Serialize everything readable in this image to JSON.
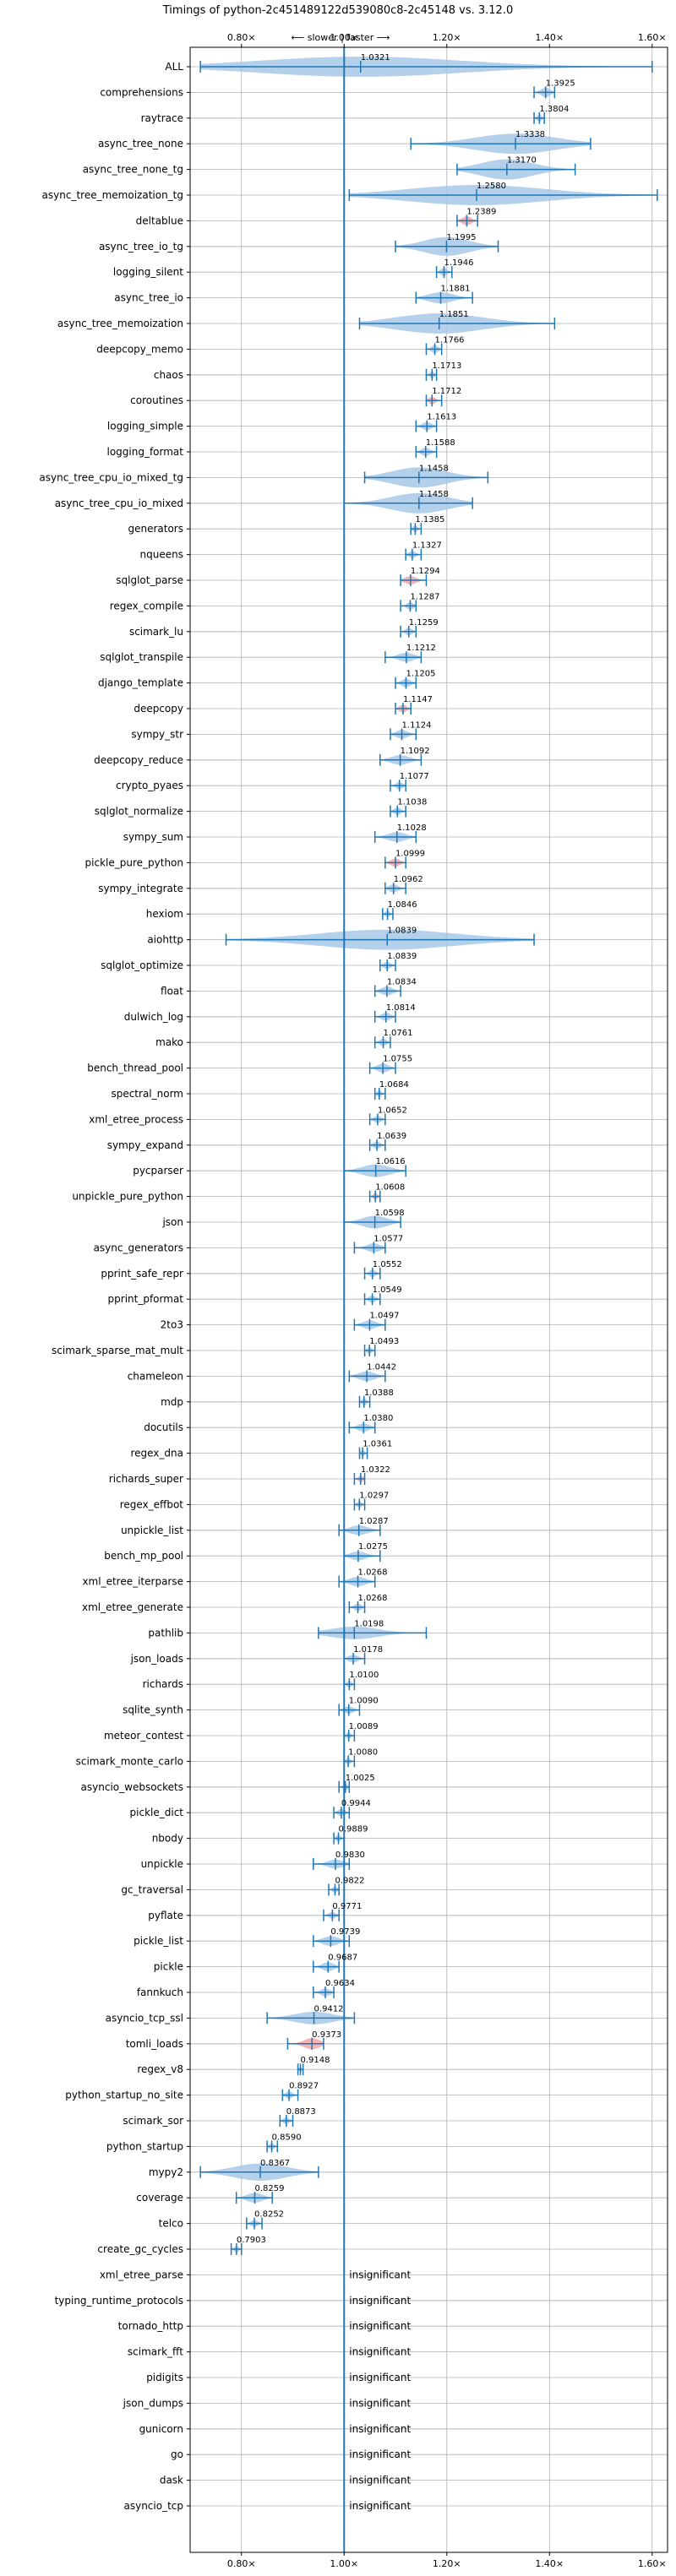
{
  "chart_data": {
    "type": "violin",
    "title": "Timings of python-2c451489122d539080c8-2c45148 vs. 3.12.0",
    "direction_label": "⟵ slower | faster ⟶",
    "xlim": [
      0.7,
      1.63
    ],
    "x_ticks": [
      0.8,
      1.0,
      1.2,
      1.4,
      1.6
    ],
    "x_tick_labels": [
      "0.80×",
      "1.00×",
      "1.20×",
      "1.40×",
      "1.60×"
    ],
    "reference_line": 1.0,
    "grid": true,
    "insignificant_label": "insignificant",
    "colors": {
      "violin": "#a8c8e8",
      "violin_slow": "#f4a6a6",
      "whisker": "#1f77b4",
      "grid": "#b0b0b0"
    },
    "benchmarks": [
      {
        "name": "ALL",
        "value": 1.0321,
        "min": 0.72,
        "max": 1.6,
        "spread": 0.2
      },
      {
        "name": "comprehensions",
        "value": 1.3925,
        "min": 1.37,
        "max": 1.41,
        "spread": 0.03
      },
      {
        "name": "raytrace",
        "value": 1.3804,
        "min": 1.37,
        "max": 1.39,
        "spread": 0.015
      },
      {
        "name": "async_tree_none",
        "value": 1.3338,
        "min": 1.13,
        "max": 1.48,
        "spread": 0.15
      },
      {
        "name": "async_tree_none_tg",
        "value": 1.317,
        "min": 1.22,
        "max": 1.45,
        "spread": 0.1
      },
      {
        "name": "async_tree_memoization_tg",
        "value": 1.258,
        "min": 1.01,
        "max": 1.61,
        "spread": 0.26
      },
      {
        "name": "deltablue",
        "value": 1.2389,
        "min": 1.22,
        "max": 1.26,
        "spread": 0.025,
        "slow": true
      },
      {
        "name": "async_tree_io_tg",
        "value": 1.1995,
        "min": 1.1,
        "max": 1.3,
        "spread": 0.09
      },
      {
        "name": "logging_silent",
        "value": 1.1946,
        "min": 1.18,
        "max": 1.21,
        "spread": 0.02
      },
      {
        "name": "async_tree_io",
        "value": 1.1881,
        "min": 1.14,
        "max": 1.25,
        "spread": 0.04
      },
      {
        "name": "async_tree_memoization",
        "value": 1.1851,
        "min": 1.03,
        "max": 1.41,
        "spread": 0.14
      },
      {
        "name": "deepcopy_memo",
        "value": 1.1766,
        "min": 1.16,
        "max": 1.19,
        "spread": 0.02
      },
      {
        "name": "chaos",
        "value": 1.1713,
        "min": 1.16,
        "max": 1.18,
        "spread": 0.015
      },
      {
        "name": "coroutines",
        "value": 1.1712,
        "min": 1.16,
        "max": 1.19,
        "spread": 0.015,
        "slow": true
      },
      {
        "name": "logging_simple",
        "value": 1.1613,
        "min": 1.14,
        "max": 1.18,
        "spread": 0.02
      },
      {
        "name": "logging_format",
        "value": 1.1588,
        "min": 1.14,
        "max": 1.18,
        "spread": 0.02
      },
      {
        "name": "async_tree_cpu_io_mixed_tg",
        "value": 1.1458,
        "min": 1.04,
        "max": 1.28,
        "spread": 0.1
      },
      {
        "name": "async_tree_cpu_io_mixed",
        "value": 1.1458,
        "min": 1.0,
        "max": 1.25,
        "spread": 0.1
      },
      {
        "name": "generators",
        "value": 1.1385,
        "min": 1.13,
        "max": 1.15,
        "spread": 0.012
      },
      {
        "name": "nqueens",
        "value": 1.1327,
        "min": 1.12,
        "max": 1.15,
        "spread": 0.015
      },
      {
        "name": "sqlglot_parse",
        "value": 1.1294,
        "min": 1.11,
        "max": 1.16,
        "spread": 0.022,
        "slow": true
      },
      {
        "name": "regex_compile",
        "value": 1.1287,
        "min": 1.11,
        "max": 1.14,
        "spread": 0.015
      },
      {
        "name": "scimark_lu",
        "value": 1.1259,
        "min": 1.11,
        "max": 1.14,
        "spread": 0.015
      },
      {
        "name": "sqlglot_transpile",
        "value": 1.1212,
        "min": 1.08,
        "max": 1.15,
        "spread": 0.025
      },
      {
        "name": "django_template",
        "value": 1.1205,
        "min": 1.1,
        "max": 1.14,
        "spread": 0.02
      },
      {
        "name": "deepcopy",
        "value": 1.1147,
        "min": 1.1,
        "max": 1.13,
        "spread": 0.02,
        "slow": true
      },
      {
        "name": "sympy_str",
        "value": 1.1124,
        "min": 1.09,
        "max": 1.14,
        "spread": 0.025
      },
      {
        "name": "deepcopy_reduce",
        "value": 1.1092,
        "min": 1.07,
        "max": 1.15,
        "spread": 0.03
      },
      {
        "name": "crypto_pyaes",
        "value": 1.1077,
        "min": 1.09,
        "max": 1.12,
        "spread": 0.015
      },
      {
        "name": "sqlglot_normalize",
        "value": 1.1038,
        "min": 1.09,
        "max": 1.12,
        "spread": 0.015
      },
      {
        "name": "sympy_sum",
        "value": 1.1028,
        "min": 1.06,
        "max": 1.14,
        "spread": 0.03
      },
      {
        "name": "pickle_pure_python",
        "value": 1.0999,
        "min": 1.08,
        "max": 1.12,
        "spread": 0.02,
        "slow": true
      },
      {
        "name": "sympy_integrate",
        "value": 1.0962,
        "min": 1.08,
        "max": 1.12,
        "spread": 0.02
      },
      {
        "name": "hexiom",
        "value": 1.0846,
        "min": 1.075,
        "max": 1.095,
        "spread": 0.01
      },
      {
        "name": "aiohttp",
        "value": 1.0839,
        "min": 0.77,
        "max": 1.37,
        "spread": 0.19
      },
      {
        "name": "sqlglot_optimize",
        "value": 1.0839,
        "min": 1.07,
        "max": 1.1,
        "spread": 0.015
      },
      {
        "name": "float",
        "value": 1.0834,
        "min": 1.06,
        "max": 1.11,
        "spread": 0.025
      },
      {
        "name": "dulwich_log",
        "value": 1.0814,
        "min": 1.06,
        "max": 1.1,
        "spread": 0.02
      },
      {
        "name": "mako",
        "value": 1.0761,
        "min": 1.06,
        "max": 1.09,
        "spread": 0.015
      },
      {
        "name": "bench_thread_pool",
        "value": 1.0755,
        "min": 1.05,
        "max": 1.1,
        "spread": 0.025
      },
      {
        "name": "spectral_norm",
        "value": 1.0684,
        "min": 1.06,
        "max": 1.08,
        "spread": 0.01
      },
      {
        "name": "xml_etree_process",
        "value": 1.0652,
        "min": 1.05,
        "max": 1.08,
        "spread": 0.015
      },
      {
        "name": "sympy_expand",
        "value": 1.0639,
        "min": 1.05,
        "max": 1.08,
        "spread": 0.015
      },
      {
        "name": "pycparser",
        "value": 1.0616,
        "min": 1.0,
        "max": 1.12,
        "spread": 0.05
      },
      {
        "name": "unpickle_pure_python",
        "value": 1.0608,
        "min": 1.05,
        "max": 1.07,
        "spread": 0.012,
        "slow": true
      },
      {
        "name": "json",
        "value": 1.0598,
        "min": 1.0,
        "max": 1.11,
        "spread": 0.05
      },
      {
        "name": "async_generators",
        "value": 1.0577,
        "min": 1.02,
        "max": 1.08,
        "spread": 0.025
      },
      {
        "name": "pprint_safe_repr",
        "value": 1.0552,
        "min": 1.04,
        "max": 1.07,
        "spread": 0.015
      },
      {
        "name": "pprint_pformat",
        "value": 1.0549,
        "min": 1.04,
        "max": 1.07,
        "spread": 0.015
      },
      {
        "name": "2to3",
        "value": 1.0497,
        "min": 1.02,
        "max": 1.08,
        "spread": 0.025
      },
      {
        "name": "scimark_sparse_mat_mult",
        "value": 1.0493,
        "min": 1.04,
        "max": 1.06,
        "spread": 0.012
      },
      {
        "name": "chameleon",
        "value": 1.0442,
        "min": 1.01,
        "max": 1.08,
        "spread": 0.03
      },
      {
        "name": "mdp",
        "value": 1.0388,
        "min": 1.03,
        "max": 1.05,
        "spread": 0.012
      },
      {
        "name": "docutils",
        "value": 1.038,
        "min": 1.01,
        "max": 1.06,
        "spread": 0.02
      },
      {
        "name": "regex_dna",
        "value": 1.0361,
        "min": 1.03,
        "max": 1.045,
        "spread": 0.01
      },
      {
        "name": "richards_super",
        "value": 1.0322,
        "min": 1.02,
        "max": 1.04,
        "spread": 0.012,
        "slow": true
      },
      {
        "name": "regex_effbot",
        "value": 1.0297,
        "min": 1.02,
        "max": 1.04,
        "spread": 0.01
      },
      {
        "name": "unpickle_list",
        "value": 1.0287,
        "min": 0.99,
        "max": 1.07,
        "spread": 0.03
      },
      {
        "name": "bench_mp_pool",
        "value": 1.0275,
        "min": 1.0,
        "max": 1.07,
        "spread": 0.025
      },
      {
        "name": "xml_etree_iterparse",
        "value": 1.0268,
        "min": 0.99,
        "max": 1.06,
        "spread": 0.03
      },
      {
        "name": "xml_etree_generate",
        "value": 1.0268,
        "min": 1.01,
        "max": 1.04,
        "spread": 0.015
      },
      {
        "name": "pathlib",
        "value": 1.0198,
        "min": 0.95,
        "max": 1.16,
        "spread": 0.05
      },
      {
        "name": "json_loads",
        "value": 1.0178,
        "min": 1.0,
        "max": 1.04,
        "spread": 0.02
      },
      {
        "name": "richards",
        "value": 1.01,
        "min": 1.0,
        "max": 1.02,
        "spread": 0.01
      },
      {
        "name": "sqlite_synth",
        "value": 1.009,
        "min": 0.99,
        "max": 1.03,
        "spread": 0.015
      },
      {
        "name": "meteor_contest",
        "value": 1.0089,
        "min": 1.0,
        "max": 1.02,
        "spread": 0.01
      },
      {
        "name": "scimark_monte_carlo",
        "value": 1.008,
        "min": 1.0,
        "max": 1.02,
        "spread": 0.01
      },
      {
        "name": "asyncio_websockets",
        "value": 1.0025,
        "min": 0.99,
        "max": 1.01,
        "spread": 0.01
      },
      {
        "name": "pickle_dict",
        "value": 0.9944,
        "min": 0.98,
        "max": 1.01,
        "spread": 0.015
      },
      {
        "name": "nbody",
        "value": 0.9889,
        "min": 0.98,
        "max": 1.0,
        "spread": 0.01
      },
      {
        "name": "unpickle",
        "value": 0.983,
        "min": 0.94,
        "max": 1.01,
        "spread": 0.025
      },
      {
        "name": "gc_traversal",
        "value": 0.9822,
        "min": 0.97,
        "max": 0.99,
        "spread": 0.01
      },
      {
        "name": "pyflate",
        "value": 0.9771,
        "min": 0.96,
        "max": 0.99,
        "spread": 0.012
      },
      {
        "name": "pickle_list",
        "value": 0.9739,
        "min": 0.94,
        "max": 1.01,
        "spread": 0.03
      },
      {
        "name": "pickle",
        "value": 0.9687,
        "min": 0.94,
        "max": 0.99,
        "spread": 0.025
      },
      {
        "name": "fannkuch",
        "value": 0.9634,
        "min": 0.94,
        "max": 0.98,
        "spread": 0.02
      },
      {
        "name": "asyncio_tcp_ssl",
        "value": 0.9412,
        "min": 0.85,
        "max": 1.02,
        "spread": 0.05
      },
      {
        "name": "tomli_loads",
        "value": 0.9373,
        "min": 0.89,
        "max": 0.96,
        "spread": 0.04,
        "slow": true
      },
      {
        "name": "regex_v8",
        "value": 0.9148,
        "min": 0.91,
        "max": 0.92,
        "spread": 0.006
      },
      {
        "name": "python_startup_no_site",
        "value": 0.8927,
        "min": 0.88,
        "max": 0.91,
        "spread": 0.015
      },
      {
        "name": "scimark_sor",
        "value": 0.8873,
        "min": 0.875,
        "max": 0.9,
        "spread": 0.012
      },
      {
        "name": "python_startup",
        "value": 0.859,
        "min": 0.85,
        "max": 0.87,
        "spread": 0.012
      },
      {
        "name": "mypy2",
        "value": 0.8367,
        "min": 0.72,
        "max": 0.95,
        "spread": 0.08
      },
      {
        "name": "coverage",
        "value": 0.8259,
        "min": 0.79,
        "max": 0.86,
        "spread": 0.03
      },
      {
        "name": "telco",
        "value": 0.8252,
        "min": 0.81,
        "max": 0.84,
        "spread": 0.012
      },
      {
        "name": "create_gc_cycles",
        "value": 0.7903,
        "min": 0.78,
        "max": 0.8,
        "spread": 0.012
      },
      {
        "name": "xml_etree_parse",
        "insignificant": true
      },
      {
        "name": "typing_runtime_protocols",
        "insignificant": true
      },
      {
        "name": "tornado_http",
        "insignificant": true
      },
      {
        "name": "scimark_fft",
        "insignificant": true
      },
      {
        "name": "pidigits",
        "insignificant": true
      },
      {
        "name": "json_dumps",
        "insignificant": true
      },
      {
        "name": "gunicorn",
        "insignificant": true
      },
      {
        "name": "go",
        "insignificant": true
      },
      {
        "name": "dask",
        "insignificant": true
      },
      {
        "name": "asyncio_tcp",
        "insignificant": true
      }
    ]
  }
}
